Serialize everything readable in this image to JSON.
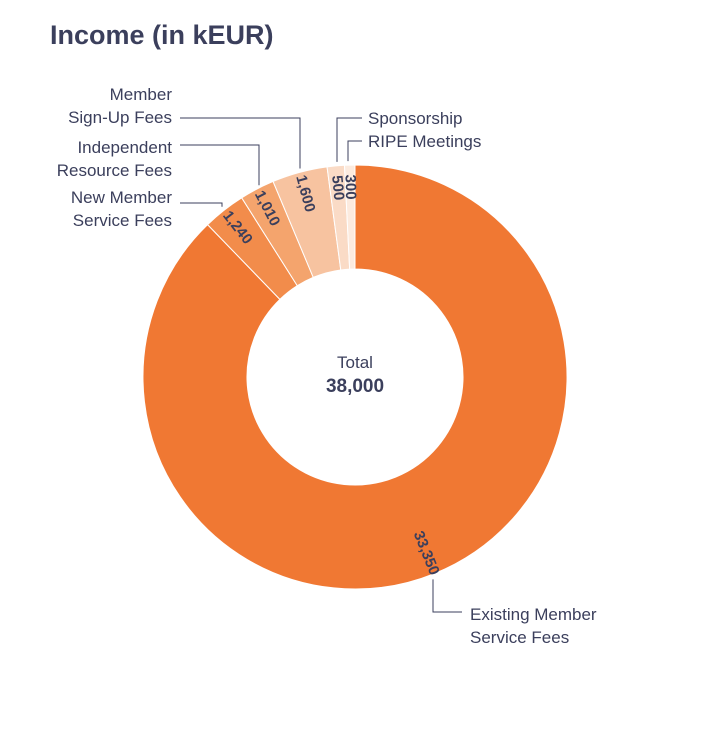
{
  "chart_data": {
    "type": "pie",
    "title": "Income (in kEUR)",
    "center": {
      "label": "Total",
      "value": "38,000"
    },
    "slices": [
      {
        "name": "Existing Member Service Fees",
        "value": 33350,
        "label": "33,350",
        "color": "#f07833"
      },
      {
        "name": "New Member Service Fees",
        "value": 1240,
        "label": "1,240",
        "color": "#f28c4b"
      },
      {
        "name": "Independent Resource Fees",
        "value": 1010,
        "label": "1,010",
        "color": "#f4a46d"
      },
      {
        "name": "Member Sign-Up Fees",
        "value": 1600,
        "label": "1,600",
        "color": "#f7c3a0"
      },
      {
        "name": "Sponsorship",
        "value": 500,
        "label": "500",
        "color": "#fadbc6"
      },
      {
        "name": "RIPE Meetings",
        "value": 300,
        "label": "300",
        "color": "#fcebdf"
      }
    ],
    "external_labels": [
      {
        "slice": "Existing Member Service Fees",
        "lines": [
          "Existing Member",
          "Service Fees"
        ]
      },
      {
        "slice": "New Member Service Fees",
        "lines": [
          "New Member",
          "Service Fees"
        ]
      },
      {
        "slice": "Independent Resource Fees",
        "lines": [
          "Independent",
          "Resource Fees"
        ]
      },
      {
        "slice": "Member Sign-Up Fees",
        "lines": [
          "Member",
          "Sign-Up Fees"
        ]
      },
      {
        "slice": "Sponsorship",
        "lines": [
          "Sponsorship"
        ]
      },
      {
        "slice": "RIPE Meetings",
        "lines": [
          "RIPE Meetings"
        ]
      }
    ]
  }
}
